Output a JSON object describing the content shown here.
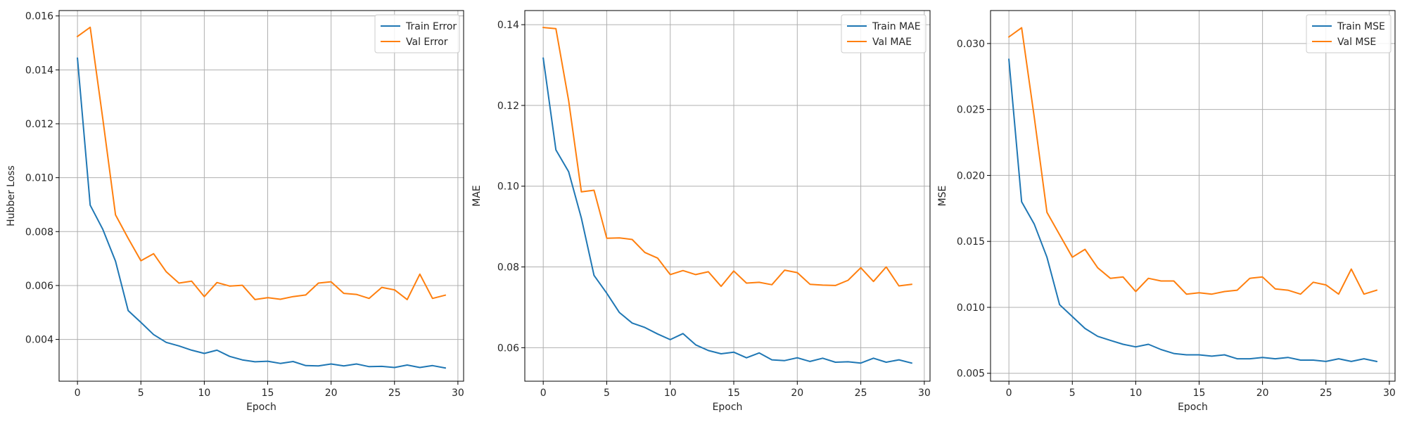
{
  "figure": {
    "background": "#ffffff",
    "grid_color": "#b0b0b0",
    "axis_color": "#000000"
  },
  "chart_data": [
    {
      "type": "line",
      "xlabel": "Epoch",
      "ylabel": "Hubber Loss",
      "xlim": [
        -1.45,
        30.45
      ],
      "ylim": [
        0.00245,
        0.0162
      ],
      "xticks": [
        0,
        5,
        10,
        15,
        20,
        25,
        30
      ],
      "xtick_labels": [
        "0",
        "5",
        "10",
        "15",
        "20",
        "25",
        "30"
      ],
      "yticks": [
        0.004,
        0.006,
        0.008,
        0.01,
        0.012,
        0.014,
        0.016
      ],
      "ytick_labels": [
        "0.004",
        "0.006",
        "0.008",
        "0.010",
        "0.012",
        "0.014",
        "0.016"
      ],
      "grid": true,
      "legend": "upper right",
      "x": [
        0,
        1,
        2,
        3,
        4,
        5,
        6,
        7,
        8,
        9,
        10,
        11,
        12,
        13,
        14,
        15,
        16,
        17,
        18,
        19,
        20,
        21,
        22,
        23,
        24,
        25,
        26,
        27,
        28,
        29
      ],
      "series": [
        {
          "name": "Train Error",
          "color": "#1f77b4",
          "values": [
            0.01443,
            0.00898,
            0.00808,
            0.0069,
            0.00507,
            0.00463,
            0.00418,
            0.00389,
            0.00376,
            0.0036,
            0.00348,
            0.0036,
            0.00337,
            0.00324,
            0.00317,
            0.00319,
            0.00311,
            0.00318,
            0.00303,
            0.00302,
            0.00309,
            0.00302,
            0.00309,
            0.00299,
            0.003,
            0.00296,
            0.00305,
            0.00296,
            0.00303,
            0.00294
          ]
        },
        {
          "name": "Val Error",
          "color": "#ff7f0e",
          "values": [
            0.01524,
            0.01558,
            0.01217,
            0.00862,
            0.00775,
            0.00692,
            0.00718,
            0.00651,
            0.00609,
            0.00616,
            0.00559,
            0.00611,
            0.00598,
            0.00601,
            0.00548,
            0.00555,
            0.00549,
            0.00559,
            0.00565,
            0.00609,
            0.00614,
            0.00571,
            0.00567,
            0.00552,
            0.00593,
            0.00584,
            0.00548,
            0.00642,
            0.00552,
            0.00564
          ]
        }
      ]
    },
    {
      "type": "line",
      "xlabel": "Epoch",
      "ylabel": "MAE",
      "xlim": [
        -1.45,
        30.45
      ],
      "ylim": [
        0.0517,
        0.1435
      ],
      "xticks": [
        0,
        5,
        10,
        15,
        20,
        25,
        30
      ],
      "xtick_labels": [
        "0",
        "5",
        "10",
        "15",
        "20",
        "25",
        "30"
      ],
      "yticks": [
        0.06,
        0.08,
        0.1,
        0.12,
        0.14
      ],
      "ytick_labels": [
        "0.06",
        "0.08",
        "0.10",
        "0.12",
        "0.14"
      ],
      "grid": true,
      "legend": "upper right",
      "x": [
        0,
        1,
        2,
        3,
        4,
        5,
        6,
        7,
        8,
        9,
        10,
        11,
        12,
        13,
        14,
        15,
        16,
        17,
        18,
        19,
        20,
        21,
        22,
        23,
        24,
        25,
        26,
        27,
        28,
        29
      ],
      "series": [
        {
          "name": "Train MAE",
          "color": "#1f77b4",
          "values": [
            0.1317,
            0.109,
            0.1036,
            0.0921,
            0.0779,
            0.0735,
            0.0687,
            0.0661,
            0.065,
            0.0634,
            0.062,
            0.0635,
            0.0607,
            0.0593,
            0.0585,
            0.0589,
            0.0575,
            0.0587,
            0.057,
            0.0568,
            0.0575,
            0.0566,
            0.0574,
            0.0564,
            0.0565,
            0.0562,
            0.0574,
            0.0564,
            0.057,
            0.0562
          ]
        },
        {
          "name": "Val MAE",
          "color": "#ff7f0e",
          "values": [
            0.1393,
            0.139,
            0.1212,
            0.0986,
            0.099,
            0.0871,
            0.0872,
            0.0868,
            0.0836,
            0.0822,
            0.0781,
            0.0791,
            0.0781,
            0.0788,
            0.0752,
            0.079,
            0.076,
            0.0762,
            0.0756,
            0.0792,
            0.0786,
            0.0757,
            0.0755,
            0.0754,
            0.0767,
            0.0798,
            0.0764,
            0.08,
            0.0753,
            0.0757
          ]
        }
      ]
    },
    {
      "type": "line",
      "xlabel": "Epoch",
      "ylabel": "MSE",
      "xlim": [
        -1.45,
        30.45
      ],
      "ylim": [
        0.0044,
        0.0325
      ],
      "xticks": [
        0,
        5,
        10,
        15,
        20,
        25,
        30
      ],
      "xtick_labels": [
        "0",
        "5",
        "10",
        "15",
        "20",
        "25",
        "30"
      ],
      "yticks": [
        0.005,
        0.01,
        0.015,
        0.02,
        0.025,
        0.03
      ],
      "ytick_labels": [
        "0.005",
        "0.010",
        "0.015",
        "0.020",
        "0.025",
        "0.030"
      ],
      "grid": true,
      "legend": "upper right",
      "x": [
        0,
        1,
        2,
        3,
        4,
        5,
        6,
        7,
        8,
        9,
        10,
        11,
        12,
        13,
        14,
        15,
        16,
        17,
        18,
        19,
        20,
        21,
        22,
        23,
        24,
        25,
        26,
        27,
        28,
        29
      ],
      "series": [
        {
          "name": "Train MSE",
          "color": "#1f77b4",
          "values": [
            0.0288,
            0.018,
            0.0163,
            0.0138,
            0.0102,
            0.0093,
            0.0084,
            0.0078,
            0.0075,
            0.0072,
            0.007,
            0.0072,
            0.0068,
            0.0065,
            0.0064,
            0.0064,
            0.0063,
            0.0064,
            0.0061,
            0.0061,
            0.0062,
            0.0061,
            0.0062,
            0.006,
            0.006,
            0.0059,
            0.0061,
            0.0059,
            0.0061,
            0.0059
          ]
        },
        {
          "name": "Val MSE",
          "color": "#ff7f0e",
          "values": [
            0.0305,
            0.0312,
            0.0244,
            0.0172,
            0.0155,
            0.0138,
            0.0144,
            0.013,
            0.0122,
            0.0123,
            0.0112,
            0.0122,
            0.012,
            0.012,
            0.011,
            0.0111,
            0.011,
            0.0112,
            0.0113,
            0.0122,
            0.0123,
            0.0114,
            0.0113,
            0.011,
            0.0119,
            0.0117,
            0.011,
            0.0129,
            0.011,
            0.0113
          ]
        }
      ]
    }
  ]
}
